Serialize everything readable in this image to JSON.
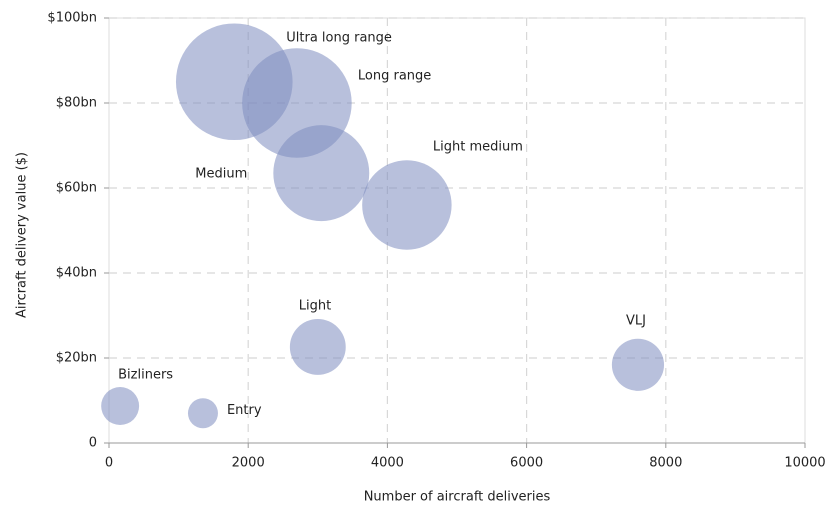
{
  "chart_data": {
    "type": "bubble",
    "xlabel": "Number of aircraft deliveries",
    "ylabel": "Aircraft delivery value ($)",
    "labels": [
      "Ultra long range",
      "Long range",
      "Medium",
      "Light medium",
      "Light",
      "VLJ",
      "Bizliners",
      "Entry"
    ],
    "x": [
      1800,
      2700,
      3050,
      4280,
      3000,
      7600,
      160,
      1350
    ],
    "values": [
      85,
      80,
      63.5,
      56,
      22.6,
      18.4,
      8.7,
      7
    ],
    "sizes": [
      3400,
      3000,
      2300,
      2000,
      780,
      680,
      360,
      225
    ],
    "color": "#7d8cc0",
    "xlim": [
      0,
      10000
    ],
    "xticks": [
      0,
      2000,
      4000,
      6000,
      8000,
      10000
    ],
    "ylim": [
      0,
      100
    ],
    "yticks": [
      0,
      {
        "value": 20,
        "label": "$20bn"
      },
      {
        "value": 40,
        "label": "$40bn"
      },
      {
        "value": 60,
        "label": "$60bn"
      },
      {
        "value": 80,
        "label": "$80bn"
      },
      {
        "value": 100,
        "label": "$100bn"
      }
    ],
    "grid": true
  }
}
